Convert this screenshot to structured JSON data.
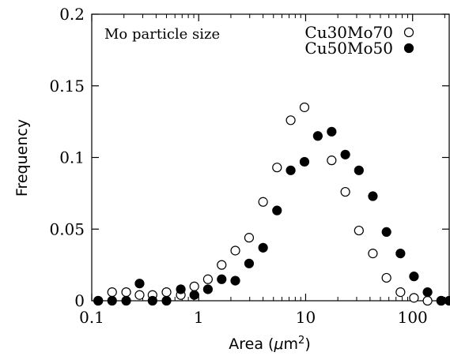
{
  "chart_data": {
    "type": "scatter",
    "title": "",
    "annotation": "Mo particle size",
    "xlabel": "Area (μm²)",
    "xlabel_prefix": "Area (",
    "xlabel_mu": "μ",
    "xlabel_unit": "m",
    "xlabel_sup": "2",
    "xlabel_suffix": ")",
    "ylabel": "Frequency",
    "x_scale": "log",
    "xlim": [
      0.1,
      220
    ],
    "ylim": [
      0,
      0.2
    ],
    "x_ticks": [
      0.1,
      1,
      10,
      100
    ],
    "x_tick_labels": [
      "0.1",
      "1",
      "10",
      "100"
    ],
    "y_ticks": [
      0,
      0.05,
      0.1,
      0.15,
      0.2
    ],
    "y_tick_labels": [
      "0",
      "0.05",
      "0.1",
      "0.15",
      "0.2"
    ],
    "grid": false,
    "legend_position": "top-right",
    "series": [
      {
        "name": "Cu30Mo70",
        "marker": "open-circle",
        "color": "#000000",
        "points": [
          [
            0.115,
            0.0
          ],
          [
            0.155,
            0.006
          ],
          [
            0.21,
            0.006
          ],
          [
            0.28,
            0.004
          ],
          [
            0.37,
            0.004
          ],
          [
            0.5,
            0.006
          ],
          [
            0.68,
            0.004
          ],
          [
            0.91,
            0.01
          ],
          [
            1.22,
            0.015
          ],
          [
            1.64,
            0.025
          ],
          [
            2.2,
            0.035
          ],
          [
            2.96,
            0.044
          ],
          [
            4.0,
            0.069
          ],
          [
            5.4,
            0.093
          ],
          [
            7.25,
            0.126
          ],
          [
            9.75,
            0.135
          ],
          [
            17.5,
            0.098
          ],
          [
            23.5,
            0.076
          ],
          [
            31.5,
            0.049
          ],
          [
            42.5,
            0.033
          ],
          [
            57.0,
            0.016
          ],
          [
            77.0,
            0.006
          ],
          [
            103.0,
            0.002
          ],
          [
            138.0,
            0.0
          ],
          [
            185.0,
            0.0
          ]
        ]
      },
      {
        "name": "Cu50Mo50",
        "marker": "filled-circle",
        "color": "#000000",
        "points": [
          [
            0.115,
            0.0
          ],
          [
            0.155,
            0.0
          ],
          [
            0.21,
            0.0
          ],
          [
            0.28,
            0.012
          ],
          [
            0.37,
            0.0
          ],
          [
            0.5,
            0.0
          ],
          [
            0.68,
            0.008
          ],
          [
            0.91,
            0.004
          ],
          [
            1.22,
            0.008
          ],
          [
            1.64,
            0.015
          ],
          [
            2.2,
            0.014
          ],
          [
            2.96,
            0.026
          ],
          [
            4.0,
            0.037
          ],
          [
            5.4,
            0.063
          ],
          [
            7.25,
            0.091
          ],
          [
            9.75,
            0.097
          ],
          [
            13.0,
            0.115
          ],
          [
            17.5,
            0.118
          ],
          [
            23.5,
            0.102
          ],
          [
            31.5,
            0.091
          ],
          [
            42.5,
            0.073
          ],
          [
            57.0,
            0.048
          ],
          [
            77.0,
            0.033
          ],
          [
            103.0,
            0.017
          ],
          [
            138.0,
            0.006
          ],
          [
            185.0,
            0.0
          ],
          [
            220.0,
            0.0
          ]
        ]
      }
    ]
  }
}
